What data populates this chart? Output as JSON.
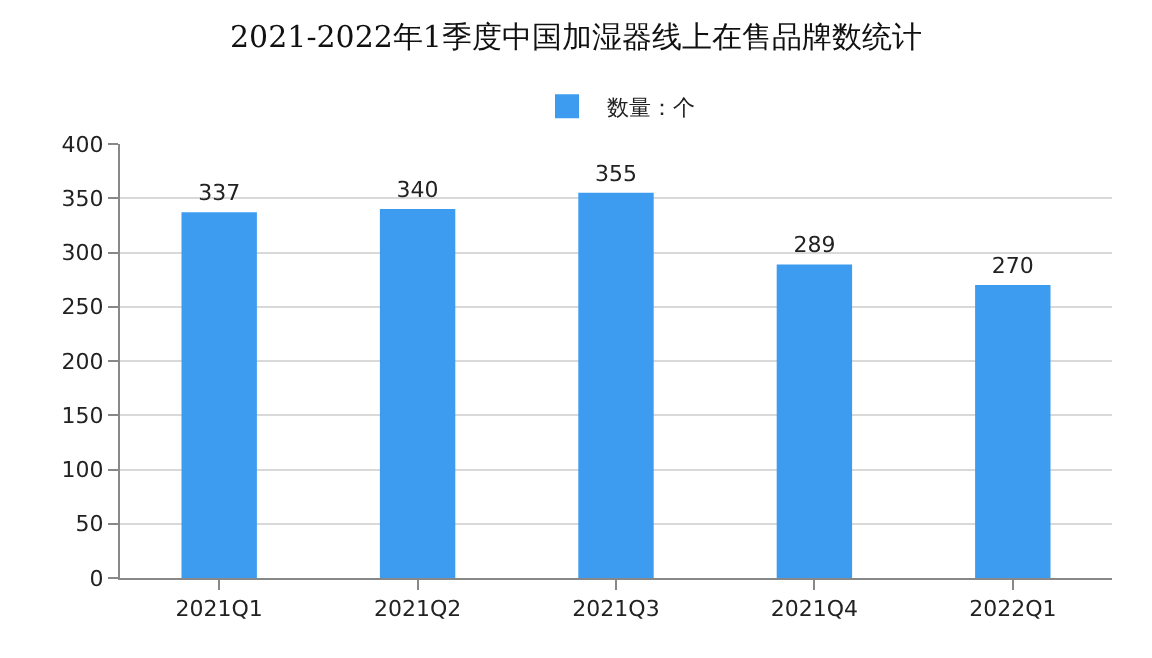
{
  "chart_data": {
    "type": "bar",
    "title": "2021-2022年1季度中国加湿器线上在售品牌数统计",
    "categories": [
      "2021Q1",
      "2021Q2",
      "2021Q3",
      "2021Q4",
      "2022Q1"
    ],
    "series": [
      {
        "name": "数量：个",
        "color": "#3d9cf0",
        "values": [
          337,
          340,
          355,
          289,
          270
        ]
      }
    ],
    "ylim": [
      0,
      400
    ],
    "yticks": [
      0,
      50,
      100,
      150,
      200,
      250,
      300,
      350,
      400
    ],
    "grid": "y",
    "legend": "top",
    "data_labels": true
  }
}
